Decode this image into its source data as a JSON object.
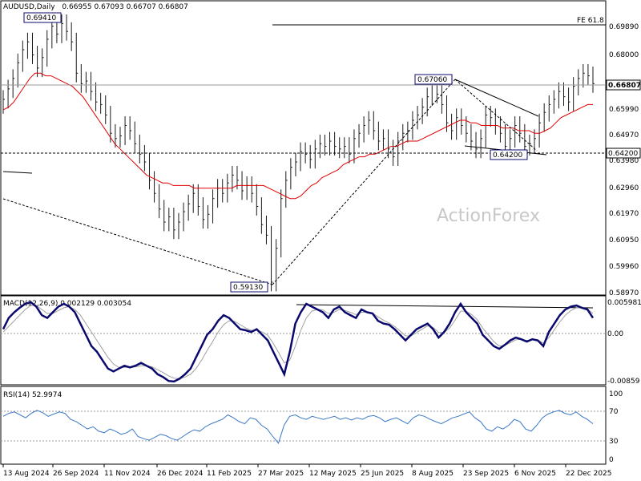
{
  "header": {
    "symbol": "AUDUSD,Daily",
    "ohlc": "0.66955 0.67093 0.66707 0.66807"
  },
  "watermark": "ActionForex",
  "chart_data": [
    {
      "type": "candlestick",
      "title": "AUDUSD,Daily",
      "ylim": [
        0.5897,
        0.7008
      ],
      "y_ticks": [
        "0.69890",
        "0.68000",
        "0.66807",
        "0.65990",
        "0.64970",
        "0.63980",
        "0.62960",
        "0.61970",
        "0.60950",
        "0.59960",
        "0.58970"
      ],
      "current_price": "0.66807",
      "support_label": "0.64200",
      "fe_label": "FE 61.8",
      "annotations": [
        {
          "label": "0.69410",
          "date": "30 Sep 2024",
          "value": 0.6941
        },
        {
          "label": "0.67060",
          "date": "17 Sep 2025",
          "value": 0.6706
        },
        {
          "label": "0.64200",
          "date": "21 Oct 2025",
          "value": 0.642
        },
        {
          "label": "0.59130",
          "date": "9 Apr 2025",
          "value": 0.5913
        }
      ],
      "close_series": [
        0.664,
        0.668,
        0.672,
        0.678,
        0.683,
        0.686,
        0.681,
        0.676,
        0.68,
        0.687,
        0.692,
        0.689,
        0.693,
        0.69,
        0.686,
        0.674,
        0.67,
        0.671,
        0.667,
        0.663,
        0.662,
        0.658,
        0.651,
        0.649,
        0.65,
        0.654,
        0.652,
        0.647,
        0.643,
        0.64,
        0.633,
        0.628,
        0.622,
        0.617,
        0.619,
        0.614,
        0.617,
        0.621,
        0.624,
        0.628,
        0.623,
        0.618,
        0.62,
        0.626,
        0.63,
        0.628,
        0.632,
        0.635,
        0.633,
        0.629,
        0.631,
        0.628,
        0.623,
        0.616,
        0.612,
        0.594,
        0.607,
        0.626,
        0.633,
        0.638,
        0.64,
        0.644,
        0.643,
        0.641,
        0.645,
        0.647,
        0.646,
        0.648,
        0.646,
        0.645,
        0.646,
        0.643,
        0.649,
        0.651,
        0.654,
        0.656,
        0.652,
        0.648,
        0.649,
        0.645,
        0.642,
        0.648,
        0.651,
        0.652,
        0.656,
        0.658,
        0.661,
        0.665,
        0.67,
        0.666,
        0.662,
        0.655,
        0.652,
        0.657,
        0.654,
        0.651,
        0.648,
        0.645,
        0.649,
        0.658,
        0.657,
        0.654,
        0.651,
        0.646,
        0.649,
        0.654,
        0.651,
        0.646,
        0.647,
        0.649,
        0.655,
        0.659,
        0.662,
        0.664,
        0.667,
        0.665,
        0.663,
        0.669,
        0.672,
        0.674,
        0.673,
        0.67
      ],
      "ma_series": [
        0.66,
        0.661,
        0.663,
        0.666,
        0.669,
        0.672,
        0.674,
        0.674,
        0.673,
        0.673,
        0.672,
        0.671,
        0.67,
        0.669,
        0.667,
        0.665,
        0.662,
        0.659,
        0.656,
        0.653,
        0.65,
        0.647,
        0.645,
        0.643,
        0.641,
        0.639,
        0.637,
        0.635,
        0.634,
        0.633,
        0.632,
        0.632,
        0.631,
        0.631,
        0.631,
        0.631,
        0.63,
        0.63,
        0.63,
        0.63,
        0.63,
        0.63,
        0.63,
        0.63,
        0.631,
        0.631,
        0.631,
        0.631,
        0.631,
        0.631,
        0.63,
        0.629,
        0.628,
        0.627,
        0.626,
        0.626,
        0.627,
        0.629,
        0.631,
        0.632,
        0.634,
        0.635,
        0.636,
        0.637,
        0.639,
        0.64,
        0.641,
        0.642,
        0.642,
        0.643,
        0.643,
        0.644,
        0.645,
        0.646,
        0.646,
        0.647,
        0.648,
        0.648,
        0.648,
        0.649,
        0.65,
        0.651,
        0.652,
        0.653,
        0.654,
        0.655,
        0.656,
        0.656,
        0.655,
        0.655,
        0.654,
        0.654,
        0.654,
        0.654,
        0.653,
        0.653,
        0.653,
        0.652,
        0.652,
        0.652,
        0.651,
        0.651,
        0.652,
        0.653,
        0.655,
        0.657,
        0.658,
        0.659,
        0.66,
        0.661,
        0.662,
        0.662
      ]
    },
    {
      "type": "line",
      "title": "MACD(12,26,9) 0.002129 0.003054",
      "ylim": [
        -0.0086,
        0.0065
      ],
      "y_ticks": [
        "0.005981",
        "0.00",
        "-0.00859"
      ],
      "macd_series": [
        0.001,
        0.003,
        0.004,
        0.0048,
        0.0055,
        0.0058,
        0.005,
        0.0035,
        0.003,
        0.004,
        0.005,
        0.0055,
        0.005,
        0.004,
        0.002,
        0.0,
        -0.002,
        -0.003,
        -0.0045,
        -0.006,
        -0.0065,
        -0.006,
        -0.0055,
        -0.0058,
        -0.0055,
        -0.005,
        -0.0055,
        -0.006,
        -0.007,
        -0.0075,
        -0.0082,
        -0.0083,
        -0.0078,
        -0.007,
        -0.006,
        -0.004,
        -0.002,
        0.0,
        0.001,
        0.0025,
        0.0035,
        0.003,
        0.002,
        0.001,
        0.0008,
        0.0005,
        0.001,
        0.0,
        -0.001,
        -0.003,
        -0.005,
        -0.007,
        -0.003,
        0.002,
        0.004,
        0.0055,
        0.005,
        0.0045,
        0.004,
        0.003,
        0.0045,
        0.005,
        0.004,
        0.0035,
        0.003,
        0.0045,
        0.004,
        0.0038,
        0.0025,
        0.002,
        0.0018,
        0.001,
        0.0,
        -0.001,
        0.0,
        0.001,
        0.0015,
        0.002,
        0.001,
        -0.0005,
        0.0005,
        0.002,
        0.004,
        0.0055,
        0.004,
        0.003,
        0.002,
        0.0,
        -0.001,
        -0.002,
        -0.0025,
        -0.0018,
        -0.001,
        -0.0005,
        -0.0008,
        -0.0012,
        -0.0008,
        -0.001,
        -0.002,
        0.0005,
        0.002,
        0.0035,
        0.0045,
        0.005,
        0.0052,
        0.0048,
        0.0045,
        0.003
      ],
      "signal_series": [
        0.0005,
        0.0015,
        0.0025,
        0.0035,
        0.0045,
        0.0052,
        0.0052,
        0.0045,
        0.0038,
        0.0038,
        0.0043,
        0.0048,
        0.005,
        0.0045,
        0.0035,
        0.002,
        0.0005,
        -0.001,
        -0.0025,
        -0.004,
        -0.0052,
        -0.0058,
        -0.0058,
        -0.0058,
        -0.0057,
        -0.0055,
        -0.0055,
        -0.0057,
        -0.0062,
        -0.0067,
        -0.0073,
        -0.0077,
        -0.0078,
        -0.0075,
        -0.007,
        -0.006,
        -0.0045,
        -0.0028,
        -0.0012,
        0.0005,
        0.0018,
        0.0025,
        0.0024,
        0.0018,
        0.0012,
        0.0008,
        0.0008,
        0.0005,
        -0.0001,
        -0.0015,
        -0.0032,
        -0.005,
        -0.0045,
        -0.002,
        0.0008,
        0.003,
        0.0042,
        0.0045,
        0.0044,
        0.0038,
        0.004,
        0.0045,
        0.0043,
        0.004,
        0.0036,
        0.004,
        0.004,
        0.0039,
        0.0032,
        0.0026,
        0.0021,
        0.0015,
        0.0007,
        -0.0002,
        -0.0002,
        0.0004,
        0.001,
        0.0016,
        0.0013,
        0.0004,
        0.0004,
        0.0012,
        0.0026,
        0.0042,
        0.0042,
        0.0036,
        0.0027,
        0.0012,
        0.0,
        -0.0012,
        -0.002,
        -0.0019,
        -0.0014,
        -0.0009,
        -0.0008,
        -0.001,
        -0.0009,
        -0.0009,
        -0.0015,
        -0.0005,
        0.0009,
        0.0023,
        0.0035,
        0.0043,
        0.0048,
        0.0048,
        0.0046,
        0.0038
      ]
    },
    {
      "type": "line",
      "title": "RSI(14) 52.9974",
      "ylim": [
        0,
        100
      ],
      "y_ticks": [
        "100",
        "70",
        "30",
        "0"
      ],
      "levels": [
        70,
        30
      ],
      "rsi_series": [
        62,
        66,
        68,
        64,
        60,
        66,
        70,
        67,
        62,
        65,
        68,
        66,
        58,
        55,
        50,
        45,
        48,
        42,
        40,
        45,
        42,
        38,
        40,
        45,
        35,
        32,
        30,
        34,
        38,
        36,
        32,
        30,
        35,
        40,
        44,
        42,
        48,
        52,
        55,
        58,
        64,
        60,
        55,
        52,
        60,
        58,
        50,
        45,
        35,
        26,
        50,
        62,
        64,
        60,
        58,
        62,
        60,
        58,
        60,
        62,
        58,
        60,
        57,
        60,
        58,
        62,
        63,
        60,
        55,
        58,
        60,
        56,
        52,
        60,
        64,
        62,
        58,
        55,
        52,
        56,
        60,
        62,
        65,
        68,
        60,
        55,
        45,
        42,
        48,
        45,
        50,
        58,
        55,
        45,
        42,
        50,
        60,
        65,
        68,
        70,
        66,
        64,
        68,
        62,
        58,
        52
      ]
    }
  ],
  "x_axis": {
    "labels": [
      "13 Aug 2024",
      "26 Sep 2024",
      "11 Nov 2024",
      "26 Dec 2024",
      "11 Feb 2025",
      "27 Mar 2025",
      "12 May 2025",
      "25 Jun 2025",
      "8 Aug 2025",
      "23 Sep 2025",
      "6 Nov 2025",
      "22 Dec 2025"
    ]
  }
}
